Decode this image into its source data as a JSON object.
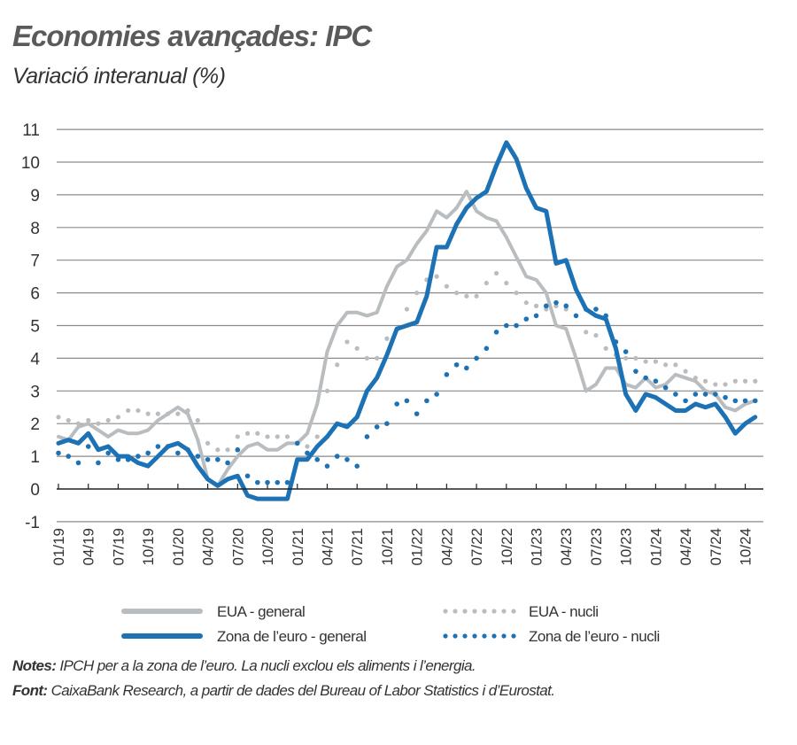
{
  "chart_data": {
    "type": "line",
    "title": "Economies avançades: IPC",
    "subtitle": "Variació interanual (%)",
    "xlabel": "",
    "ylabel": "",
    "ylim": [
      -1,
      11
    ],
    "yticks": [
      "-1",
      "0",
      "1",
      "2",
      "3",
      "4",
      "5",
      "6",
      "7",
      "8",
      "9",
      "10",
      "11"
    ],
    "grid": true,
    "legend_position": "bottom",
    "x_start": "01/19",
    "x_end": "11/24",
    "xtick_labels": [
      "01/19",
      "04/19",
      "07/19",
      "10/19",
      "01/20",
      "04/20",
      "07/20",
      "10/20",
      "01/21",
      "04/21",
      "07/21",
      "10/21",
      "01/22",
      "04/22",
      "07/22",
      "10/22",
      "01/23",
      "04/23",
      "07/23",
      "10/23",
      "01/24",
      "04/24",
      "07/24",
      "10/24"
    ],
    "series": [
      {
        "name": "EUA - general",
        "color": "#b9bdc0",
        "style": "solid",
        "values": [
          1.6,
          1.5,
          1.9,
          2.0,
          1.8,
          1.6,
          1.8,
          1.7,
          1.7,
          1.8,
          2.1,
          2.3,
          2.5,
          2.3,
          1.5,
          0.3,
          0.1,
          0.6,
          1.0,
          1.3,
          1.4,
          1.2,
          1.2,
          1.4,
          1.4,
          1.7,
          2.6,
          4.2,
          5.0,
          5.4,
          5.4,
          5.3,
          5.4,
          6.2,
          6.8,
          7.0,
          7.5,
          7.9,
          8.5,
          8.3,
          8.6,
          9.1,
          8.5,
          8.3,
          8.2,
          7.7,
          7.1,
          6.5,
          6.4,
          6.0,
          5.0,
          4.9,
          4.0,
          3.0,
          3.2,
          3.7,
          3.7,
          3.2,
          3.1,
          3.4,
          3.1,
          3.2,
          3.5,
          3.4,
          3.3,
          3.0,
          2.9,
          2.5,
          2.4,
          2.6,
          2.7
        ]
      },
      {
        "name": "EUA - nucli",
        "color": "#b9bdc0",
        "style": "dotted",
        "values": [
          2.2,
          2.1,
          2.0,
          2.1,
          2.0,
          2.1,
          2.2,
          2.4,
          2.4,
          2.3,
          2.3,
          2.3,
          2.3,
          2.4,
          2.1,
          1.4,
          1.2,
          1.2,
          1.6,
          1.7,
          1.7,
          1.6,
          1.6,
          1.6,
          1.4,
          1.3,
          1.6,
          3.0,
          3.8,
          4.5,
          4.3,
          4.0,
          4.0,
          4.6,
          4.9,
          5.5,
          6.0,
          6.4,
          6.5,
          6.2,
          6.0,
          5.9,
          5.9,
          6.3,
          6.6,
          6.3,
          6.0,
          5.7,
          5.6,
          5.5,
          5.6,
          5.5,
          5.3,
          4.8,
          4.7,
          4.3,
          4.1,
          4.0,
          4.0,
          3.9,
          3.9,
          3.8,
          3.8,
          3.6,
          3.4,
          3.3,
          3.2,
          3.2,
          3.3,
          3.3,
          3.3
        ]
      },
      {
        "name": "Zona de l’euro - general",
        "color": "#1c72b4",
        "style": "solid",
        "values": [
          1.4,
          1.5,
          1.4,
          1.7,
          1.2,
          1.3,
          1.0,
          1.0,
          0.8,
          0.7,
          1.0,
          1.3,
          1.4,
          1.2,
          0.7,
          0.3,
          0.1,
          0.3,
          0.4,
          -0.2,
          -0.3,
          -0.3,
          -0.3,
          -0.3,
          0.9,
          0.9,
          1.3,
          1.6,
          2.0,
          1.9,
          2.2,
          3.0,
          3.4,
          4.1,
          4.9,
          5.0,
          5.1,
          5.9,
          7.4,
          7.4,
          8.1,
          8.6,
          8.9,
          9.1,
          9.9,
          10.6,
          10.1,
          9.2,
          8.6,
          8.5,
          6.9,
          7.0,
          6.1,
          5.5,
          5.3,
          5.2,
          4.3,
          2.9,
          2.4,
          2.9,
          2.8,
          2.6,
          2.4,
          2.4,
          2.6,
          2.5,
          2.6,
          2.2,
          1.7,
          2.0,
          2.2
        ]
      },
      {
        "name": "Zona de l’euro - nucli",
        "color": "#1c72b4",
        "style": "dotted",
        "values": [
          1.1,
          1.0,
          0.8,
          1.3,
          0.8,
          1.1,
          0.9,
          0.9,
          1.0,
          1.1,
          1.3,
          1.3,
          1.1,
          1.2,
          1.0,
          0.9,
          0.9,
          0.8,
          1.2,
          0.4,
          0.2,
          0.2,
          0.2,
          0.2,
          1.4,
          1.1,
          0.9,
          0.7,
          1.0,
          0.9,
          0.7,
          1.6,
          1.9,
          2.0,
          2.6,
          2.7,
          2.3,
          2.7,
          2.9,
          3.5,
          3.8,
          3.7,
          4.0,
          4.3,
          4.8,
          5.0,
          5.0,
          5.2,
          5.3,
          5.6,
          5.7,
          5.6,
          5.3,
          5.5,
          5.5,
          5.3,
          4.5,
          4.2,
          3.6,
          3.4,
          3.3,
          3.1,
          2.9,
          2.7,
          2.9,
          2.9,
          2.9,
          2.8,
          2.7,
          2.7,
          2.7
        ]
      }
    ]
  },
  "notes": {
    "notes_label": "Notes:",
    "notes_text": " IPCH per a la zona de l’euro. La nucli exclou els aliments i l’energia.",
    "source_label": "Font:",
    "source_text": " CaixaBank Research, a partir de dades del Bureau of Labor Statistics i d’Eurostat."
  }
}
